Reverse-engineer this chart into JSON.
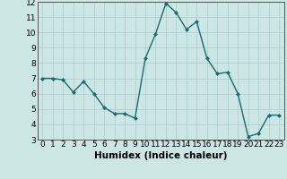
{
  "x": [
    0,
    1,
    2,
    3,
    4,
    5,
    6,
    7,
    8,
    9,
    10,
    11,
    12,
    13,
    14,
    15,
    16,
    17,
    18,
    19,
    20,
    21,
    22,
    23
  ],
  "y": [
    7.0,
    7.0,
    6.9,
    6.1,
    6.8,
    6.0,
    5.1,
    4.7,
    4.7,
    4.4,
    8.3,
    9.9,
    11.9,
    11.3,
    10.2,
    10.7,
    8.3,
    7.3,
    7.4,
    6.0,
    3.2,
    3.4,
    4.6,
    4.6
  ],
  "xlabel": "Humidex (Indice chaleur)",
  "ylim": [
    3,
    12
  ],
  "xlim_min": -0.5,
  "xlim_max": 23.5,
  "yticks": [
    3,
    4,
    5,
    6,
    7,
    8,
    9,
    10,
    11,
    12
  ],
  "xticks": [
    0,
    1,
    2,
    3,
    4,
    5,
    6,
    7,
    8,
    9,
    10,
    11,
    12,
    13,
    14,
    15,
    16,
    17,
    18,
    19,
    20,
    21,
    22,
    23
  ],
  "line_color": "#1a6b6b",
  "marker": "D",
  "marker_size": 2.0,
  "bg_color": "#cce5e5",
  "grid_color": "#aacccc",
  "xlabel_fontsize": 7.5,
  "tick_fontsize": 6.5,
  "linewidth": 1.0
}
